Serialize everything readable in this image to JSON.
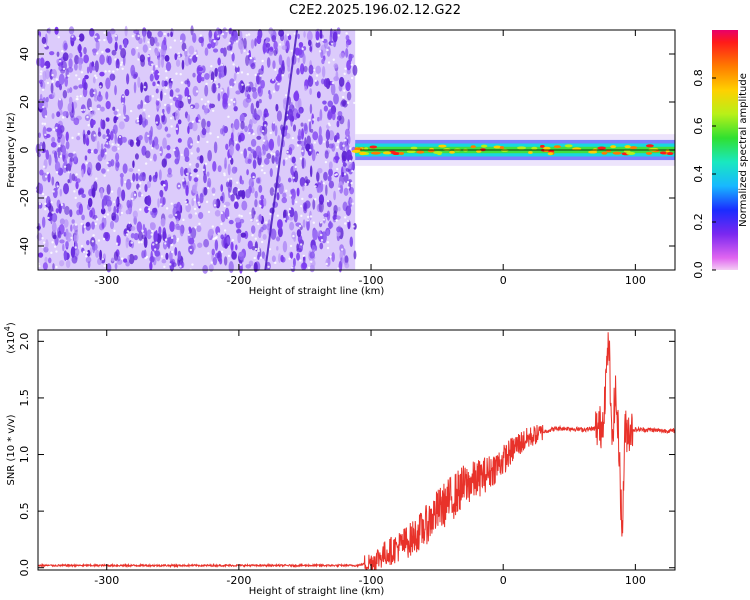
{
  "title": "C2E2.2025.196.02.12.G22",
  "colors": {
    "background": "#ffffff",
    "axis": "#000000",
    "snr_line": "#e8322a",
    "spectrogram_noise": "#6a2ee0",
    "spectrogram_light": "#c8b0f8"
  },
  "chart_data": [
    {
      "type": "heatmap",
      "name": "spectrogram",
      "xlabel": "Height of straight line (km)",
      "ylabel": "Frequency (Hz)",
      "xlim": [
        -352,
        130
      ],
      "ylim": [
        -50,
        50
      ],
      "x_ticks": [
        -300,
        -200,
        -100,
        0,
        100
      ],
      "y_ticks": [
        -40,
        -20,
        0,
        20,
        40
      ],
      "noise_region_x": [
        -352,
        -112
      ],
      "signal_band": {
        "x_range": [
          -112,
          130
        ],
        "center_hz": 0,
        "half_width_hz": 3
      },
      "colorbar": {
        "label": "Normalized spectral amplitude",
        "range": [
          0.0,
          1.0
        ],
        "ticks": [
          0.0,
          0.2,
          0.4,
          0.6,
          0.8
        ],
        "colormap": "rainbow (magenta-blue-cyan-green-yellow-orange-red)"
      },
      "grid": false
    },
    {
      "type": "line",
      "name": "snr",
      "xlabel": "Height of straight line (km)",
      "ylabel": "SNR (10 * v/v)",
      "y_multiplier_label": "(x10",
      "y_multiplier_exp": "4",
      "y_multiplier_close": ")",
      "xlim": [
        -352,
        130
      ],
      "ylim": [
        -0.02,
        2.1
      ],
      "x_ticks": [
        -300,
        -200,
        -100,
        0,
        100
      ],
      "y_ticks": [
        "0.0",
        "0.5",
        "1.0",
        "1.5",
        "2.0"
      ],
      "y_tick_values": [
        0.0,
        0.5,
        1.0,
        1.5,
        2.0
      ],
      "series": [
        {
          "x": [
            -352,
            -300,
            -250,
            -200,
            -150,
            -110,
            -100,
            -90,
            -80,
            -70,
            -60,
            -50,
            -40,
            -30,
            -20,
            -10,
            0,
            10,
            20,
            30,
            40,
            50,
            60,
            70,
            75,
            78,
            80,
            82,
            85,
            88,
            90,
            92,
            95,
            100,
            110,
            120,
            130
          ],
          "y": [
            0.02,
            0.02,
            0.02,
            0.02,
            0.02,
            0.02,
            0.05,
            0.12,
            0.18,
            0.25,
            0.35,
            0.5,
            0.6,
            0.72,
            0.78,
            0.85,
            0.95,
            1.08,
            1.15,
            1.2,
            1.23,
            1.23,
            1.22,
            1.23,
            1.25,
            1.7,
            2.05,
            1.1,
            1.55,
            1.0,
            0.25,
            1.2,
            1.22,
            1.22,
            1.22,
            1.21,
            1.21
          ],
          "noisy": true
        }
      ],
      "grid": false
    }
  ]
}
